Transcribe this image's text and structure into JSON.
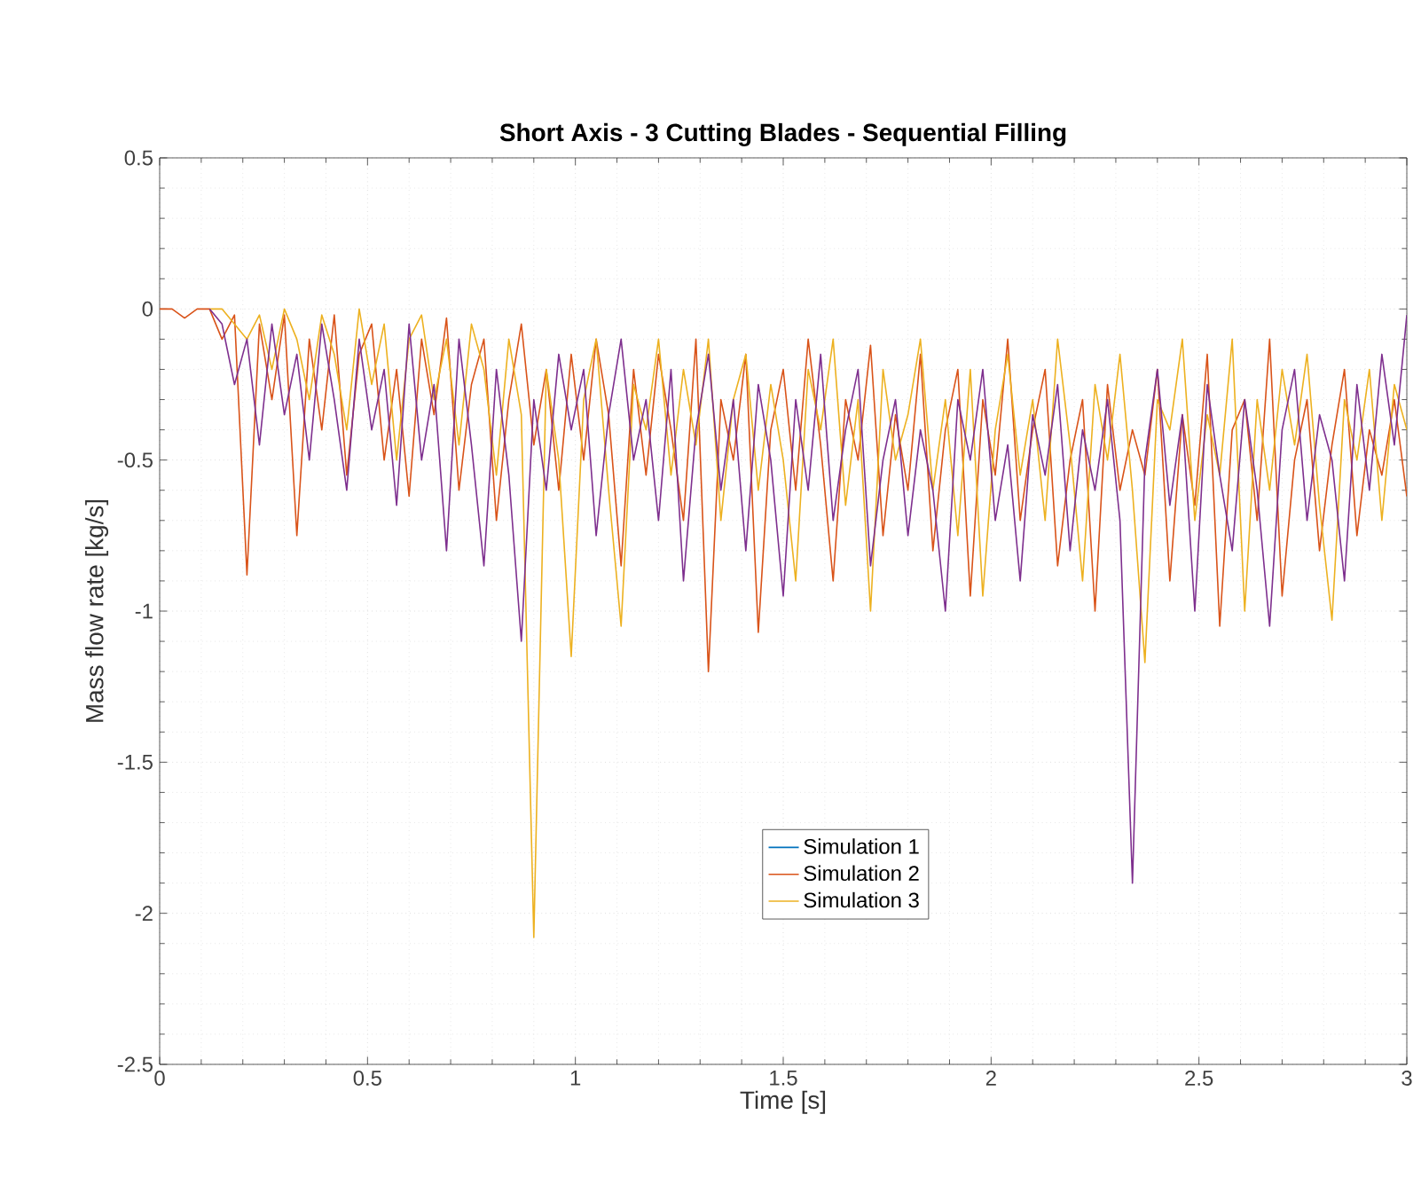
{
  "chart_data": {
    "type": "line",
    "title": "Short Axis - 3 Cutting Blades - Sequential Filling",
    "xlabel": "Time [s]",
    "ylabel": "Mass flow rate  [kg/s]",
    "x": [
      0,
      0.03,
      0.06,
      0.09,
      0.12,
      0.15,
      0.18,
      0.21,
      0.24,
      0.27,
      0.3,
      0.33,
      0.36,
      0.39,
      0.42,
      0.45,
      0.48,
      0.51,
      0.54,
      0.57,
      0.6,
      0.63,
      0.66,
      0.69,
      0.72,
      0.75,
      0.78,
      0.81,
      0.84,
      0.87,
      0.9,
      0.93,
      0.96,
      0.99,
      1.02,
      1.05,
      1.08,
      1.11,
      1.14,
      1.17,
      1.2,
      1.23,
      1.26,
      1.29,
      1.32,
      1.35,
      1.38,
      1.41,
      1.44,
      1.47,
      1.5,
      1.53,
      1.56,
      1.59,
      1.62,
      1.65,
      1.68,
      1.71,
      1.74,
      1.77,
      1.8,
      1.83,
      1.86,
      1.89,
      1.92,
      1.95,
      1.98,
      2.01,
      2.04,
      2.07,
      2.1,
      2.13,
      2.16,
      2.19,
      2.22,
      2.25,
      2.28,
      2.31,
      2.34,
      2.37,
      2.4,
      2.43,
      2.46,
      2.49,
      2.52,
      2.55,
      2.58,
      2.61,
      2.64,
      2.67,
      2.7,
      2.73,
      2.76,
      2.79,
      2.82,
      2.85,
      2.88,
      2.91,
      2.94,
      2.97,
      3.0
    ],
    "series": [
      {
        "name": "Simulation 1",
        "color": "#0072bd",
        "values": [
          null,
          null,
          null,
          null,
          null,
          null,
          null,
          null,
          null,
          null,
          null,
          null,
          null,
          null,
          null,
          null,
          null,
          null,
          null,
          null,
          null,
          null,
          null,
          null,
          null,
          null,
          null,
          null,
          null,
          null,
          null,
          null,
          null,
          null,
          null,
          null,
          null,
          null,
          null,
          null,
          null,
          null,
          null,
          null,
          null,
          null,
          null,
          null,
          null,
          null,
          null,
          null,
          null,
          null,
          null,
          null,
          null,
          null,
          null,
          null,
          null,
          null,
          null,
          null,
          null,
          null,
          null,
          null,
          null,
          null,
          null,
          null,
          null,
          null,
          null,
          null,
          null,
          null,
          null,
          null,
          null,
          null,
          null,
          null,
          null,
          null,
          null,
          null,
          null,
          null,
          null,
          null,
          null,
          null,
          null,
          null,
          null,
          null,
          null,
          null,
          null
        ]
      },
      {
        "name": "Simulation 2",
        "color": "#d95319",
        "values": [
          0,
          0,
          -0.03,
          0,
          0,
          -0.1,
          -0.02,
          -0.88,
          -0.05,
          -0.3,
          -0.02,
          -0.75,
          -0.1,
          -0.4,
          -0.02,
          -0.55,
          -0.15,
          -0.05,
          -0.5,
          -0.2,
          -0.62,
          -0.1,
          -0.35,
          -0.03,
          -0.6,
          -0.25,
          -0.1,
          -0.7,
          -0.3,
          -0.05,
          -0.45,
          -0.2,
          -0.6,
          -0.15,
          -0.5,
          -0.1,
          -0.35,
          -0.85,
          -0.2,
          -0.55,
          -0.15,
          -0.4,
          -0.7,
          -0.1,
          -1.2,
          -0.3,
          -0.5,
          -0.15,
          -1.07,
          -0.4,
          -0.2,
          -0.6,
          -0.1,
          -0.45,
          -0.9,
          -0.3,
          -0.5,
          -0.12,
          -0.75,
          -0.35,
          -0.6,
          -0.15,
          -0.8,
          -0.4,
          -0.2,
          -0.95,
          -0.3,
          -0.55,
          -0.1,
          -0.7,
          -0.4,
          -0.2,
          -0.85,
          -0.5,
          -0.3,
          -1.0,
          -0.25,
          -0.6,
          -0.4,
          -0.55,
          -0.2,
          -0.9,
          -0.35,
          -0.65,
          -0.15,
          -1.05,
          -0.4,
          -0.3,
          -0.7,
          -0.1,
          -0.95,
          -0.5,
          -0.3,
          -0.8,
          -0.45,
          -0.2,
          -0.75,
          -0.4,
          -0.55,
          -0.3,
          -0.62
        ]
      },
      {
        "name": "Simulation 3",
        "color": "#edb120",
        "values": [
          null,
          null,
          null,
          null,
          0,
          0,
          -0.05,
          -0.1,
          -0.02,
          -0.2,
          0,
          -0.1,
          -0.3,
          -0.02,
          -0.15,
          -0.4,
          0,
          -0.25,
          -0.05,
          -0.5,
          -0.1,
          -0.02,
          -0.3,
          -0.1,
          -0.45,
          -0.05,
          -0.2,
          -0.55,
          -0.1,
          -0.35,
          -2.08,
          -0.2,
          -0.5,
          -1.15,
          -0.3,
          -0.1,
          -0.6,
          -1.05,
          -0.25,
          -0.4,
          -0.1,
          -0.55,
          -0.2,
          -0.45,
          -0.1,
          -0.7,
          -0.3,
          -0.15,
          -0.6,
          -0.25,
          -0.5,
          -0.9,
          -0.2,
          -0.4,
          -0.1,
          -0.65,
          -0.3,
          -1.0,
          -0.2,
          -0.5,
          -0.35,
          -0.1,
          -0.6,
          -0.3,
          -0.75,
          -0.2,
          -0.95,
          -0.4,
          -0.15,
          -0.55,
          -0.3,
          -0.7,
          -0.1,
          -0.45,
          -0.9,
          -0.25,
          -0.5,
          -0.15,
          -0.6,
          -1.17,
          -0.3,
          -0.4,
          -0.1,
          -0.7,
          -0.35,
          -0.55,
          -0.1,
          -1.0,
          -0.3,
          -0.6,
          -0.2,
          -0.45,
          -0.15,
          -0.65,
          -1.03,
          -0.3,
          -0.5,
          -0.2,
          -0.7,
          -0.25,
          -0.4
        ]
      },
      {
        "color": "#7e2f8e",
        "values": [
          null,
          null,
          null,
          null,
          0,
          -0.05,
          -0.25,
          -0.1,
          -0.45,
          -0.05,
          -0.35,
          -0.15,
          -0.5,
          -0.05,
          -0.3,
          -0.6,
          -0.1,
          -0.4,
          -0.2,
          -0.65,
          -0.05,
          -0.5,
          -0.25,
          -0.8,
          -0.1,
          -0.45,
          -0.85,
          -0.2,
          -0.55,
          -1.1,
          -0.3,
          -0.6,
          -0.15,
          -0.4,
          -0.2,
          -0.75,
          -0.35,
          -0.1,
          -0.5,
          -0.3,
          -0.7,
          -0.2,
          -0.9,
          -0.4,
          -0.15,
          -0.6,
          -0.3,
          -0.8,
          -0.25,
          -0.5,
          -0.95,
          -0.3,
          -0.6,
          -0.15,
          -0.7,
          -0.4,
          -0.2,
          -0.85,
          -0.5,
          -0.3,
          -0.75,
          -0.4,
          -0.6,
          -1.0,
          -0.3,
          -0.5,
          -0.2,
          -0.7,
          -0.45,
          -0.9,
          -0.35,
          -0.55,
          -0.25,
          -0.8,
          -0.4,
          -0.6,
          -0.3,
          -0.7,
          -1.9,
          -0.5,
          -0.2,
          -0.65,
          -0.35,
          -1.0,
          -0.25,
          -0.55,
          -0.8,
          -0.3,
          -0.6,
          -1.05,
          -0.4,
          -0.2,
          -0.7,
          -0.35,
          -0.5,
          -0.9,
          -0.25,
          -0.6,
          -0.15,
          -0.45,
          -0.02
        ]
      }
    ],
    "xlim": [
      0,
      3
    ],
    "ylim": [
      -2.5,
      0.5
    ],
    "xticks": [
      0,
      0.5,
      1,
      1.5,
      2,
      2.5,
      3
    ],
    "yticks": [
      -2.5,
      -2,
      -1.5,
      -1,
      -0.5,
      0,
      0.5
    ],
    "grid": true,
    "legend": "bottom"
  }
}
